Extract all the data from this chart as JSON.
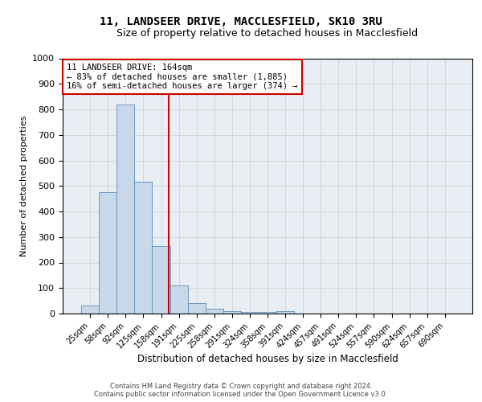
{
  "title": "11, LANDSEER DRIVE, MACCLESFIELD, SK10 3RU",
  "subtitle": "Size of property relative to detached houses in Macclesfield",
  "xlabel": "Distribution of detached houses by size in Macclesfield",
  "ylabel": "Number of detached properties",
  "categories": [
    "25sqm",
    "58sqm",
    "92sqm",
    "125sqm",
    "158sqm",
    "191sqm",
    "225sqm",
    "258sqm",
    "291sqm",
    "324sqm",
    "358sqm",
    "391sqm",
    "424sqm",
    "457sqm",
    "491sqm",
    "524sqm",
    "557sqm",
    "590sqm",
    "624sqm",
    "657sqm",
    "690sqm"
  ],
  "values": [
    30,
    475,
    820,
    515,
    265,
    110,
    40,
    20,
    10,
    5,
    5,
    10,
    0,
    0,
    0,
    0,
    0,
    0,
    0,
    0,
    0
  ],
  "bar_color": "#c8d8e8",
  "bar_edge_color": "#5b8db8",
  "vline_color": "#cc0000",
  "vline_position": 4.45,
  "annotation_title": "11 LANDSEER DRIVE: 164sqm",
  "annotation_line2": "← 83% of detached houses are smaller (1,885)",
  "annotation_line3": "16% of semi-detached houses are larger (374) →",
  "annotation_box_color": "#ffffff",
  "annotation_box_edge_color": "#cc0000",
  "ylim": [
    0,
    1000
  ],
  "yticks": [
    0,
    100,
    200,
    300,
    400,
    500,
    600,
    700,
    800,
    900,
    1000
  ],
  "grid_color": "#cccccc",
  "bg_color": "#e8eef4",
  "footer_line1": "Contains HM Land Registry data © Crown copyright and database right 2024.",
  "footer_line2": "Contains public sector information licensed under the Open Government Licence v3.0.",
  "title_fontsize": 10,
  "subtitle_fontsize": 9
}
